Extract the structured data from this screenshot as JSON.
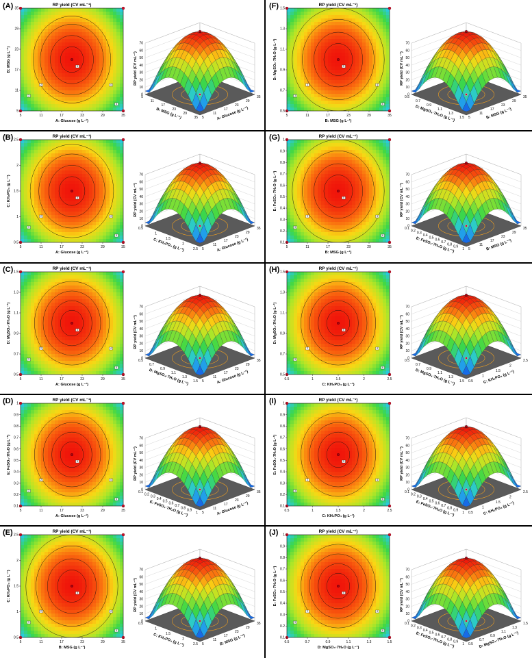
{
  "chart_data": [
    {
      "id": "A",
      "label": "(A)",
      "type": "heatmap",
      "title": "RP yield (CV mL⁻¹)",
      "xlabel": "A: Glucose (g L⁻¹)",
      "ylabel": "B: MSG (g L⁻¹)",
      "xticks": [
        "5",
        "11",
        "17",
        "23",
        "29",
        "35"
      ],
      "yticks": [
        "5",
        "11",
        "17",
        "23",
        "29",
        "35"
      ],
      "xlim": [
        5,
        35
      ],
      "ylim": [
        5,
        35
      ],
      "optimum": [
        20,
        20
      ],
      "contours": [
        8,
        15,
        22,
        27
      ],
      "surface": {
        "type": "surface",
        "zlabel": "RP yield (CV mL⁻¹)",
        "zticks": [
          "0",
          "10",
          "20",
          "30",
          "40",
          "50",
          "60",
          "70"
        ],
        "xlabel": "B: MSG (g L⁻¹)",
        "ylabel": "A: Glucose (g L⁻¹)",
        "xticks": [
          "5",
          "11",
          "17",
          "23",
          "29",
          "35"
        ],
        "yticks": [
          "5",
          "11",
          "17",
          "23",
          "29",
          "35"
        ]
      }
    },
    {
      "id": "F",
      "label": "(F)",
      "type": "heatmap",
      "title": "RP yield (CV mL⁻¹)",
      "xlabel": "B: MSG (g L⁻¹)",
      "ylabel": "D: MgSO₄·7H₂O (g L⁻¹)",
      "xticks": [
        "5",
        "11",
        "17",
        "23",
        "29",
        "35"
      ],
      "yticks": [
        "0.5",
        "0.7",
        "0.9",
        "1.1",
        "1.3",
        "1.5"
      ],
      "xlim": [
        5,
        35
      ],
      "ylim": [
        0.5,
        1.5
      ],
      "optimum": [
        20,
        1.0
      ],
      "contours": [
        10,
        17,
        25,
        32
      ],
      "surface": {
        "type": "surface",
        "zlabel": "RP yield (CV mL⁻¹)",
        "zticks": [
          "0",
          "10",
          "20",
          "30",
          "40",
          "50",
          "60",
          "70"
        ],
        "xlabel": "D: MgSO₄·7H₂O (g L⁻¹)",
        "ylabel": "B: MSG (g L⁻¹)",
        "xticks": [
          "0.5",
          "0.7",
          "0.9",
          "1.1",
          "1.3",
          "1.5"
        ],
        "yticks": [
          "5",
          "11",
          "17",
          "23",
          "29",
          "35"
        ]
      }
    },
    {
      "id": "B",
      "label": "(B)",
      "type": "heatmap",
      "title": "RP yield (CV mL⁻¹)",
      "xlabel": "A: Glucose (g L⁻¹)",
      "ylabel": "C: KH₂PO₄ (g L⁻¹)",
      "xticks": [
        "5",
        "11",
        "17",
        "23",
        "29",
        "35"
      ],
      "yticks": [
        "0.5",
        "1",
        "1.5",
        "2",
        "2.5"
      ],
      "xlim": [
        5,
        35
      ],
      "ylim": [
        0.5,
        2.5
      ],
      "optimum": [
        20,
        1.5
      ],
      "contours": [
        9,
        16,
        23,
        29
      ],
      "surface": {
        "type": "surface",
        "zlabel": "RP yield (CV mL⁻¹)",
        "zticks": [
          "0",
          "10",
          "20",
          "30",
          "40",
          "50",
          "60",
          "70"
        ],
        "xlabel": "C: KH₂PO₄ (g L⁻¹)",
        "ylabel": "A: Glucose (g L⁻¹)",
        "xticks": [
          "0.5",
          "1",
          "1.5",
          "2",
          "2.5"
        ],
        "yticks": [
          "5",
          "11",
          "17",
          "23",
          "29",
          "35"
        ]
      }
    },
    {
      "id": "G",
      "label": "(G)",
      "type": "heatmap",
      "title": "RP yield (CV mL⁻¹)",
      "xlabel": "B: MSG (g L⁻¹)",
      "ylabel": "E: FeSO₄·7H₂O (g L⁻¹)",
      "xticks": [
        "5",
        "11",
        "17",
        "23",
        "29",
        "35"
      ],
      "yticks": [
        "0.1",
        "0.2",
        "0.3",
        "0.4",
        "0.5",
        "0.6",
        "0.7",
        "0.8",
        "0.9",
        "1"
      ],
      "xlim": [
        5,
        35
      ],
      "ylim": [
        0.1,
        1.0
      ],
      "optimum": [
        20,
        0.55
      ],
      "contours": [
        10,
        17,
        25,
        32
      ],
      "surface": {
        "type": "surface",
        "zlabel": "RP yield (CV mL⁻¹)",
        "zticks": [
          "0",
          "10",
          "20",
          "30",
          "40",
          "50",
          "60",
          "70"
        ],
        "xlabel": "E: FeSO₄·7H₂O (g L⁻¹)",
        "ylabel": "B: MSG (g L⁻¹)",
        "xticks": [
          "0.1",
          "0.2",
          "0.3",
          "0.4",
          "0.5",
          "0.6",
          "0.7",
          "0.8",
          "0.9",
          "1"
        ],
        "yticks": [
          "5",
          "11",
          "17",
          "23",
          "29",
          "35"
        ]
      }
    },
    {
      "id": "C",
      "label": "(C)",
      "type": "heatmap",
      "title": "RP yield (CV mL⁻¹)",
      "xlabel": "A: Glucose (g L⁻¹)",
      "ylabel": "D: MgSO₄·7H₂O (g L⁻¹)",
      "xticks": [
        "5",
        "11",
        "17",
        "23",
        "29",
        "35"
      ],
      "yticks": [
        "0.5",
        "0.7",
        "0.9",
        "1.1",
        "1.3",
        "1.5"
      ],
      "xlim": [
        5,
        35
      ],
      "ylim": [
        0.5,
        1.5
      ],
      "optimum": [
        20,
        1.0
      ],
      "contours": [
        8,
        14,
        20,
        26
      ],
      "surface": {
        "type": "surface",
        "zlabel": "RP yield (CV mL⁻¹)",
        "zticks": [
          "0",
          "10",
          "20",
          "30",
          "40",
          "50",
          "60",
          "70"
        ],
        "xlabel": "D: MgSO₄·7H₂O (g L⁻¹)",
        "ylabel": "A: Glucose (g L⁻¹)",
        "xticks": [
          "0.5",
          "0.7",
          "0.9",
          "1.1",
          "1.3",
          "1.5"
        ],
        "yticks": [
          "5",
          "11",
          "17",
          "23",
          "29",
          "35"
        ]
      }
    },
    {
      "id": "H",
      "label": "(H)",
      "type": "heatmap",
      "title": "RP yield (CV mL⁻¹)",
      "xlabel": "C: KH₂PO₄ (g L⁻¹)",
      "ylabel": "D: MgSO₄·7H₂O (g L⁻¹)",
      "xticks": [
        "0.5",
        "1",
        "1.5",
        "2",
        "2.5"
      ],
      "yticks": [
        "0.5",
        "0.7",
        "0.9",
        "1.1",
        "1.3",
        "1.5"
      ],
      "xlim": [
        0.5,
        2.5
      ],
      "ylim": [
        0.5,
        1.5
      ],
      "optimum": [
        1.5,
        1.0
      ],
      "contours": [
        8,
        14,
        20,
        26
      ],
      "surface": {
        "type": "surface",
        "zlabel": "RP yield (CV mL⁻¹)",
        "zticks": [
          "0",
          "10",
          "20",
          "30",
          "40",
          "50",
          "60",
          "70"
        ],
        "xlabel": "D: MgSO₄·7H₂O (g L⁻¹)",
        "ylabel": "C: KH₂PO₄ (g L⁻¹)",
        "xticks": [
          "0.5",
          "0.7",
          "0.9",
          "1.1",
          "1.3",
          "1.5"
        ],
        "yticks": [
          "0.5",
          "1",
          "1.5",
          "2",
          "2.5"
        ]
      }
    },
    {
      "id": "D",
      "label": "(D)",
      "type": "heatmap",
      "title": "RP yield (CV mL⁻¹)",
      "xlabel": "A: Glucose (g L⁻¹)",
      "ylabel": "E: FeSO₄·7H₂O (g L⁻¹)",
      "xticks": [
        "5",
        "11",
        "17",
        "23",
        "29",
        "35"
      ],
      "yticks": [
        "0.1",
        "0.2",
        "0.3",
        "0.4",
        "0.5",
        "0.6",
        "0.7",
        "0.8",
        "0.9",
        "1"
      ],
      "xlim": [
        5,
        35
      ],
      "ylim": [
        0.1,
        1.0
      ],
      "optimum": [
        20,
        0.55
      ],
      "contours": [
        8,
        14,
        20,
        26
      ],
      "surface": {
        "type": "surface",
        "zlabel": "RP yield (CV mL⁻¹)",
        "zticks": [
          "0",
          "10",
          "20",
          "30",
          "40",
          "50",
          "60",
          "70"
        ],
        "xlabel": "E: FeSO₄·7H₂O (g L⁻¹)",
        "ylabel": "A: Glucose (g L⁻¹)",
        "xticks": [
          "0.1",
          "0.2",
          "0.3",
          "0.4",
          "0.5",
          "0.6",
          "0.7",
          "0.8",
          "0.9",
          "1"
        ],
        "yticks": [
          "5",
          "11",
          "17",
          "23",
          "29",
          "35"
        ]
      }
    },
    {
      "id": "I",
      "label": "(I)",
      "type": "heatmap",
      "title": "RP yield (CV mL⁻¹)",
      "xlabel": "C: KH₂PO₄ (g L⁻¹)",
      "ylabel": "E: FeSO₄·7H₂O (g L⁻¹)",
      "xticks": [
        "0.5",
        "1",
        "1.5",
        "2",
        "2.5"
      ],
      "yticks": [
        "0.1",
        "0.2",
        "0.3",
        "0.4",
        "0.5",
        "0.6",
        "0.7",
        "0.8",
        "0.9",
        "1"
      ],
      "xlim": [
        0.5,
        2.5
      ],
      "ylim": [
        0.1,
        1.0
      ],
      "optimum": [
        1.5,
        0.55
      ],
      "contours": [
        8,
        14,
        20,
        26
      ],
      "surface": {
        "type": "surface",
        "zlabel": "RP yield (CV mL⁻¹)",
        "zticks": [
          "0",
          "10",
          "20",
          "30",
          "40",
          "50",
          "60",
          "70"
        ],
        "xlabel": "E: FeSO₄·7H₂O (g L⁻¹)",
        "ylabel": "C: KH₂PO₄ (g L⁻¹)",
        "xticks": [
          "0.1",
          "0.2",
          "0.3",
          "0.4",
          "0.5",
          "0.6",
          "0.7",
          "0.8",
          "0.9",
          "1"
        ],
        "yticks": [
          "0.5",
          "1",
          "1.5",
          "2",
          "2.5"
        ]
      }
    },
    {
      "id": "E",
      "label": "(E)",
      "type": "heatmap",
      "title": "RP yield (CV mL⁻¹)",
      "xlabel": "B: MSG (g L⁻¹)",
      "ylabel": "C: KH₂PO₄ (g L⁻¹)",
      "xticks": [
        "5",
        "11",
        "17",
        "23",
        "29",
        "35"
      ],
      "yticks": [
        "0.5",
        "1",
        "1.5",
        "2",
        "2.5"
      ],
      "xlim": [
        5,
        35
      ],
      "ylim": [
        0.5,
        2.5
      ],
      "optimum": [
        20,
        1.5
      ],
      "contours": [
        10,
        17,
        25,
        32
      ],
      "surface": {
        "type": "surface",
        "zlabel": "RP yield (CV mL⁻¹)",
        "zticks": [
          "0",
          "10",
          "20",
          "30",
          "40",
          "50",
          "60",
          "70"
        ],
        "xlabel": "C: KH₂PO₄ (g L⁻¹)",
        "ylabel": "B: MSG (g L⁻¹)",
        "xticks": [
          "0.5",
          "1",
          "1.5",
          "2",
          "2.5"
        ],
        "yticks": [
          "5",
          "11",
          "17",
          "23",
          "29",
          "35"
        ]
      }
    },
    {
      "id": "J",
      "label": "(J)",
      "type": "heatmap",
      "title": "RP yield (CV mL⁻¹)",
      "xlabel": "D: MgSO₄·7H₂O (g L⁻¹)",
      "ylabel": "E: FeSO₄·7H₂O (g L⁻¹)",
      "xticks": [
        "0.5",
        "0.7",
        "0.9",
        "1.1",
        "1.3",
        "1.5"
      ],
      "yticks": [
        "0.1",
        "0.2",
        "0.3",
        "0.4",
        "0.5",
        "0.6",
        "0.7",
        "0.8",
        "0.9",
        "1"
      ],
      "xlim": [
        0.5,
        1.5
      ],
      "ylim": [
        0.1,
        1.0
      ],
      "optimum": [
        1.0,
        0.55
      ],
      "contours": [
        8,
        14,
        20,
        26
      ],
      "surface": {
        "type": "surface",
        "zlabel": "RP yield (CV mL⁻¹)",
        "zticks": [
          "0",
          "10",
          "20",
          "30",
          "40",
          "50",
          "60",
          "70"
        ],
        "xlabel": "E: FeSO₄·7H₂O (g L⁻¹)",
        "ylabel": "D: MgSO₄·7H₂O (g L⁻¹)",
        "xticks": [
          "0.1",
          "0.2",
          "0.3",
          "0.4",
          "0.5",
          "0.6",
          "0.7",
          "0.8",
          "0.9",
          "1"
        ],
        "yticks": [
          "0.5",
          "0.7",
          "0.9",
          "1.1",
          "1.3",
          "1.5"
        ]
      }
    }
  ],
  "design_point_labels": [
    "5",
    "2",
    "3",
    "4",
    "6"
  ]
}
